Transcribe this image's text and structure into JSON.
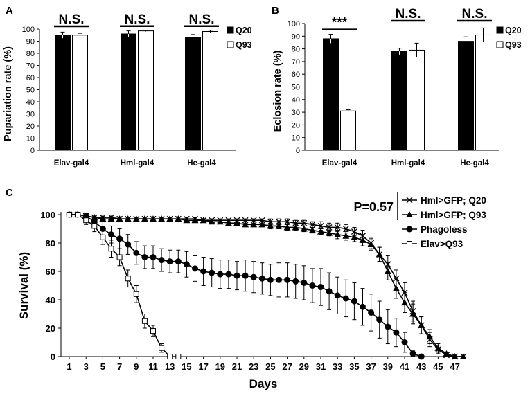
{
  "chart_data": [
    {
      "panel": "A",
      "type": "bar",
      "categories": [
        "Elav-gal4",
        "Hml-gal4",
        "He-gal4"
      ],
      "ylabel": "Pupariation rate (%)",
      "ylim": [
        0,
        100
      ],
      "yticks": [
        0,
        10,
        20,
        30,
        40,
        50,
        60,
        70,
        80,
        90,
        100
      ],
      "series": [
        {
          "name": "Q20",
          "color": "#000000",
          "values": [
            95,
            96,
            93
          ],
          "errors": [
            2.5,
            2.5,
            2.5
          ]
        },
        {
          "name": "Q93",
          "color": "#ffffff",
          "values": [
            95,
            98.5,
            98
          ],
          "errors": [
            1.5,
            0.5,
            1
          ]
        }
      ],
      "significance": [
        "N.S.",
        "N.S.",
        "N.S."
      ],
      "legend_position": "right"
    },
    {
      "panel": "B",
      "type": "bar",
      "categories": [
        "Elav-gal4",
        "Hml-gal4",
        "He-gal4"
      ],
      "ylabel": "Eclosion rate (%)",
      "ylim": [
        0,
        100
      ],
      "yticks": [
        0,
        10,
        20,
        30,
        40,
        50,
        60,
        70,
        80,
        90,
        100
      ],
      "series": [
        {
          "name": "Q20",
          "color": "#000000",
          "values": [
            88,
            78,
            86
          ],
          "errors": [
            3.5,
            2.5,
            3.5
          ]
        },
        {
          "name": "Q93",
          "color": "#ffffff",
          "values": [
            31,
            79,
            91
          ],
          "errors": [
            1,
            5.5,
            5.5
          ]
        }
      ],
      "significance": [
        "***",
        "N.S.",
        "N.S."
      ],
      "legend_position": "right"
    },
    {
      "panel": "C",
      "type": "line",
      "xlabel": "Days",
      "ylabel": "Survival (%)",
      "xlim": [
        1,
        48
      ],
      "ylim": [
        0,
        100
      ],
      "xticks": [
        1,
        3,
        5,
        7,
        9,
        11,
        13,
        15,
        17,
        19,
        21,
        23,
        25,
        27,
        29,
        31,
        33,
        35,
        37,
        39,
        41,
        43,
        45,
        47
      ],
      "yticks": [
        0,
        20,
        40,
        60,
        80,
        100
      ],
      "annotation": "P=0.57",
      "legend_position": "top-right",
      "series": [
        {
          "name": "Hml>GFP; Q20",
          "marker": "x",
          "x": [
            1,
            2,
            3,
            4,
            5,
            6,
            7,
            8,
            9,
            10,
            11,
            12,
            13,
            14,
            15,
            16,
            17,
            18,
            19,
            20,
            21,
            22,
            23,
            24,
            25,
            26,
            27,
            28,
            29,
            30,
            31,
            32,
            33,
            34,
            35,
            36,
            37,
            38,
            39,
            40,
            41,
            42,
            43,
            44,
            45,
            46,
            47,
            48
          ],
          "y": [
            100,
            100,
            99,
            98,
            98,
            98,
            97,
            97,
            97,
            97,
            97,
            97,
            97,
            97,
            97,
            97,
            96,
            96,
            96,
            96,
            96,
            96,
            96,
            96,
            95,
            95,
            95,
            94,
            94,
            93,
            92,
            91,
            91,
            90,
            88,
            85,
            80,
            72,
            65,
            55,
            45,
            32,
            22,
            12,
            5,
            1,
            0,
            0
          ],
          "err": [
            0,
            0,
            1,
            1,
            1,
            1,
            1,
            1,
            1,
            1,
            1,
            1,
            1,
            1,
            1,
            1,
            1,
            1,
            1,
            1,
            1,
            1,
            1,
            1,
            2,
            2,
            2,
            2,
            2,
            2,
            3,
            3,
            3,
            3,
            3,
            4,
            4,
            5,
            6,
            6,
            7,
            7,
            6,
            5,
            3,
            1,
            0,
            0
          ]
        },
        {
          "name": "Hml>GFP; Q93",
          "marker": "triangle",
          "x": [
            1,
            2,
            3,
            4,
            5,
            6,
            7,
            8,
            9,
            10,
            11,
            12,
            13,
            14,
            15,
            16,
            17,
            18,
            19,
            20,
            21,
            22,
            23,
            24,
            25,
            26,
            27,
            28,
            29,
            30,
            31,
            32,
            33,
            34,
            35,
            36,
            37,
            38,
            39,
            40,
            41,
            42,
            43,
            44,
            45,
            46,
            47,
            48
          ],
          "y": [
            100,
            100,
            99,
            98,
            97,
            97,
            97,
            97,
            97,
            97,
            97,
            97,
            97,
            97,
            96,
            96,
            96,
            95,
            95,
            94,
            94,
            93,
            93,
            93,
            92,
            92,
            91,
            91,
            90,
            89,
            88,
            87,
            86,
            85,
            84,
            82,
            79,
            72,
            60,
            48,
            38,
            30,
            22,
            14,
            6,
            2,
            0,
            0
          ],
          "err": [
            0,
            0,
            1,
            1,
            1,
            1,
            1,
            1,
            1,
            1,
            1,
            1,
            1,
            1,
            1,
            1,
            1,
            1,
            1,
            1,
            1,
            1,
            1,
            1,
            2,
            2,
            2,
            2,
            2,
            2,
            2,
            2,
            3,
            3,
            3,
            4,
            4,
            5,
            6,
            7,
            7,
            7,
            6,
            5,
            3,
            1,
            0,
            0
          ]
        },
        {
          "name": "Phagoless",
          "marker": "circle",
          "x": [
            1,
            2,
            3,
            4,
            5,
            6,
            7,
            8,
            9,
            10,
            11,
            12,
            13,
            14,
            15,
            16,
            17,
            18,
            19,
            20,
            21,
            22,
            23,
            24,
            25,
            26,
            27,
            28,
            29,
            30,
            31,
            32,
            33,
            34,
            35,
            36,
            37,
            38,
            39,
            40,
            41,
            42,
            43
          ],
          "y": [
            100,
            100,
            99,
            95,
            90,
            86,
            83,
            79,
            73,
            70,
            70,
            68,
            67,
            67,
            65,
            62,
            60,
            59,
            58,
            58,
            57,
            57,
            56,
            55,
            54,
            54,
            54,
            53,
            52,
            50,
            49,
            46,
            43,
            41,
            39,
            35,
            31,
            26,
            21,
            17,
            10,
            2,
            0
          ],
          "err": [
            0,
            0,
            2,
            4,
            5,
            6,
            7,
            7,
            8,
            8,
            8,
            8,
            8,
            8,
            9,
            9,
            10,
            10,
            10,
            10,
            10,
            11,
            11,
            11,
            11,
            12,
            12,
            12,
            12,
            12,
            13,
            13,
            13,
            13,
            13,
            13,
            13,
            13,
            12,
            10,
            7,
            2,
            0
          ]
        },
        {
          "name": "Elav>Q93",
          "marker": "square",
          "x": [
            1,
            2,
            3,
            4,
            5,
            6,
            7,
            8,
            9,
            10,
            11,
            12,
            13,
            14
          ],
          "y": [
            100,
            100,
            96,
            92,
            84,
            76,
            70,
            55,
            44,
            25,
            18,
            6,
            0,
            0
          ],
          "err": [
            0,
            0,
            3,
            4,
            5,
            6,
            6,
            6,
            6,
            5,
            4,
            3,
            0,
            0
          ]
        }
      ]
    }
  ]
}
